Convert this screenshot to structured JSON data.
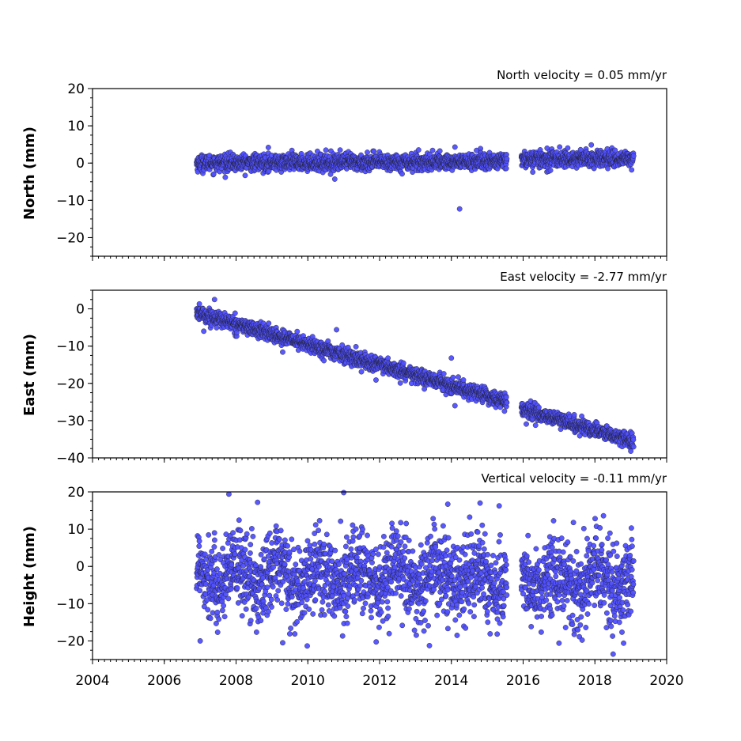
{
  "chart_data": [
    {
      "type": "scatter",
      "title": "North velocity = 0.05 mm/yr",
      "ylabel": "North (mm)",
      "xlim": [
        2004,
        2020
      ],
      "ylim": [
        -25,
        20
      ],
      "yticks": [
        20,
        10,
        0,
        -10,
        -20
      ],
      "yticklabels": [
        "20",
        "10",
        "0",
        "−10",
        "−20"
      ],
      "show_xticklabels": false,
      "velocity_mm_per_yr": 0.05,
      "noise_mm": 1.1,
      "outliers": [
        {
          "x": 2014.23,
          "y": -12.3
        },
        {
          "x": 2014.1,
          "y": 4.3
        },
        {
          "x": 2010.75,
          "y": -4.3
        },
        {
          "x": 2008.9,
          "y": 4.2
        },
        {
          "x": 2014.7,
          "y": 3.4
        },
        {
          "x": 2017.6,
          "y": 3.6
        },
        {
          "x": 2010.9,
          "y": 3.5
        }
      ],
      "offset_after_gap_mm": 0.6
    },
    {
      "type": "scatter",
      "title": "East velocity = -2.77 mm/yr",
      "ylabel": "East (mm)",
      "xlim": [
        2004,
        2020
      ],
      "ylim": [
        -40,
        5
      ],
      "yticks": [
        0,
        -10,
        -20,
        -30,
        -40
      ],
      "yticklabels": [
        "0",
        "−10",
        "−20",
        "−30",
        "−40"
      ],
      "show_xticklabels": false,
      "velocity_mm_per_yr": -2.77,
      "noise_mm": 1.0,
      "outliers": [
        {
          "x": 2007.4,
          "y": 2.5
        },
        {
          "x": 2007.1,
          "y": -6.0
        },
        {
          "x": 2010.8,
          "y": -5.6
        },
        {
          "x": 2014.0,
          "y": -13.2
        },
        {
          "x": 2014.1,
          "y": -26.0
        },
        {
          "x": 2019.0,
          "y": -38.2
        },
        {
          "x": 2009.3,
          "y": -11.6
        },
        {
          "x": 2011.9,
          "y": -19.1
        }
      ],
      "offset_after_gap_mm": -0.8
    },
    {
      "type": "scatter",
      "title": "Vertical velocity = -0.11 mm/yr",
      "ylabel": "Height (mm)",
      "xlim": [
        2004,
        2020
      ],
      "ylim": [
        -25,
        20
      ],
      "yticks": [
        20,
        10,
        0,
        -10,
        -20
      ],
      "yticklabels": [
        "20",
        "10",
        "0",
        "−10",
        "−20"
      ],
      "show_xticklabels": true,
      "velocity_mm_per_yr": -0.11,
      "noise_mm": 5.5,
      "outliers": [
        {
          "x": 2007.8,
          "y": 19.4
        },
        {
          "x": 2011.0,
          "y": 19.8
        },
        {
          "x": 2008.6,
          "y": 17.2
        },
        {
          "x": 2013.9,
          "y": 16.7
        },
        {
          "x": 2014.8,
          "y": 17.0
        },
        {
          "x": 2009.3,
          "y": -20.5
        },
        {
          "x": 2018.8,
          "y": -20.6
        },
        {
          "x": 2007.0,
          "y": -20.0
        },
        {
          "x": 2017.0,
          "y": -20.6
        }
      ]
    }
  ],
  "time_series": {
    "start": 2006.9,
    "gap_start": 2015.55,
    "gap_end": 2015.95,
    "end": 2019.08,
    "reference_epoch": 2006.9,
    "east_start_mm": -1.0
  },
  "xaxis": {
    "ticks": [
      2004,
      2006,
      2008,
      2010,
      2012,
      2014,
      2016,
      2018,
      2020
    ],
    "ticklabels": [
      "2004",
      "2006",
      "2008",
      "2010",
      "2012",
      "2014",
      "2016",
      "2018",
      "2020"
    ]
  },
  "colors": {
    "marker_fill": "#5050ff",
    "marker_edge": "#1a1a1a"
  }
}
